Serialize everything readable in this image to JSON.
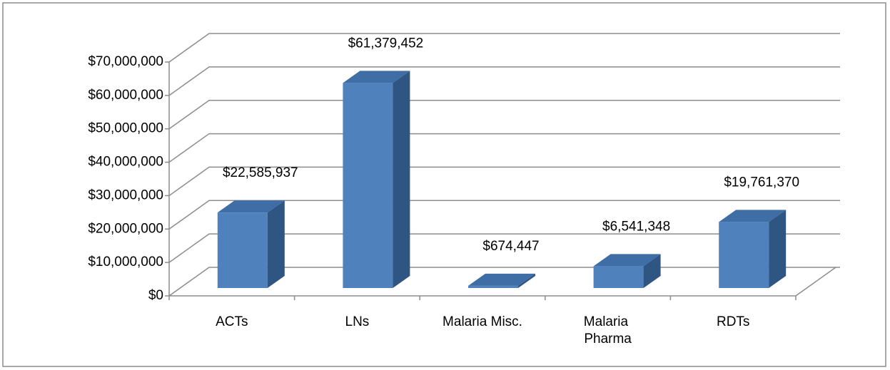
{
  "chart_data": {
    "type": "bar3d",
    "categories": [
      "ACTs",
      "LNs",
      "Malaria Misc.",
      "Malaria Pharma",
      "RDTs"
    ],
    "values": [
      22585937,
      61379452,
      674447,
      6541348,
      19761370
    ],
    "value_labels": [
      "$22,585,937",
      "$61,379,452",
      "$674,447",
      "$6,541,348",
      "$19,761,370"
    ],
    "color": "#4f81bd",
    "ylim": [
      0,
      70000000
    ],
    "yticks": [
      {
        "value": 0,
        "label": "$0"
      },
      {
        "value": 10000000,
        "label": "$10,000,000"
      },
      {
        "value": 20000000,
        "label": "$20,000,000"
      },
      {
        "value": 30000000,
        "label": "$30,000,000"
      },
      {
        "value": 40000000,
        "label": "$40,000,000"
      },
      {
        "value": 50000000,
        "label": "$50,000,000"
      },
      {
        "value": 60000000,
        "label": "$60,000,000"
      },
      {
        "value": 70000000,
        "label": "$70,000,000"
      }
    ],
    "grid": true
  }
}
